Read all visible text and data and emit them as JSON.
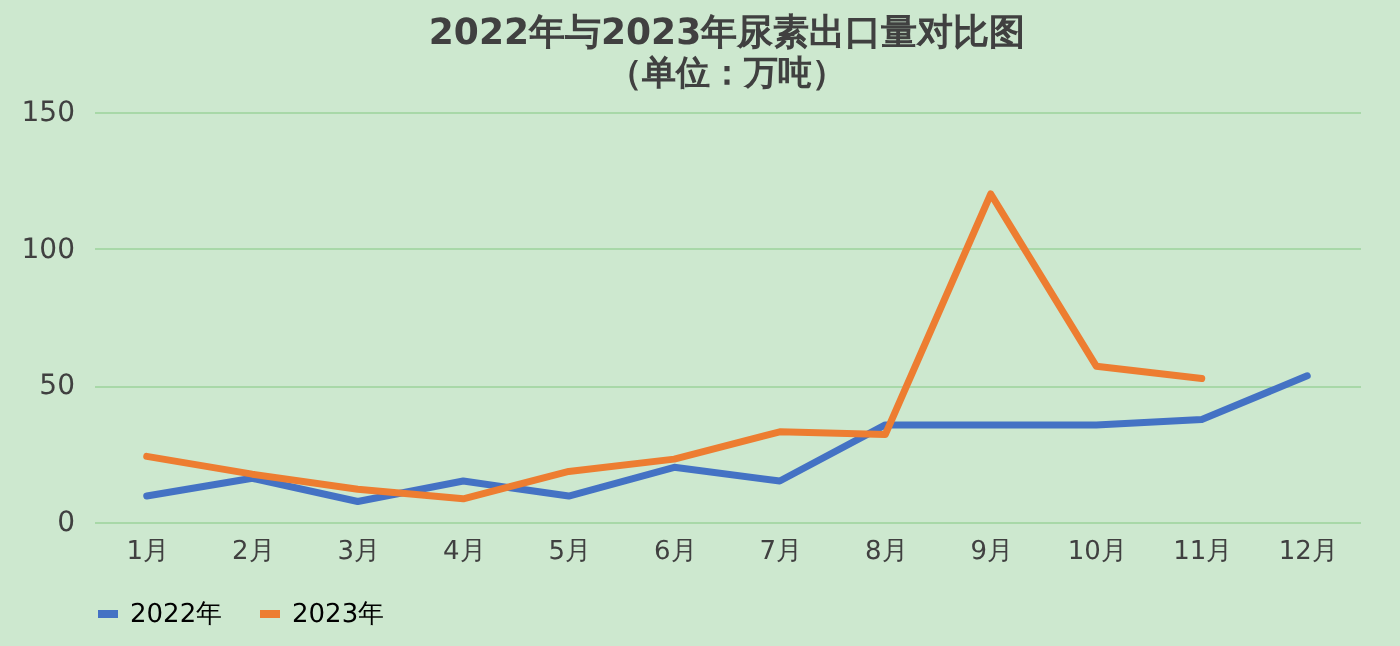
{
  "chart_data": {
    "type": "line",
    "title": "2022年与2023年尿素出口量对比图",
    "subtitle": "（单位：万吨）",
    "categories": [
      "1月",
      "2月",
      "3月",
      "4月",
      "5月",
      "6月",
      "7月",
      "8月",
      "9月",
      "10月",
      "11月",
      "12月"
    ],
    "series": [
      {
        "name": "2022年",
        "color": "#4472c4",
        "values": [
          9.5,
          16,
          7.5,
          15,
          9.5,
          20,
          15,
          35.5,
          35.5,
          35.5,
          37.5,
          53.5
        ]
      },
      {
        "name": "2023年",
        "color": "#ed7d31",
        "values": [
          24,
          17.5,
          12,
          8.5,
          18.5,
          23,
          33,
          32,
          120,
          57,
          52.5,
          null
        ]
      }
    ],
    "ylim": [
      0,
      150
    ],
    "yticks": [
      0,
      50,
      100,
      150
    ],
    "grid": "y",
    "legend": "bottom",
    "marker": "none",
    "line_style": "solid"
  }
}
